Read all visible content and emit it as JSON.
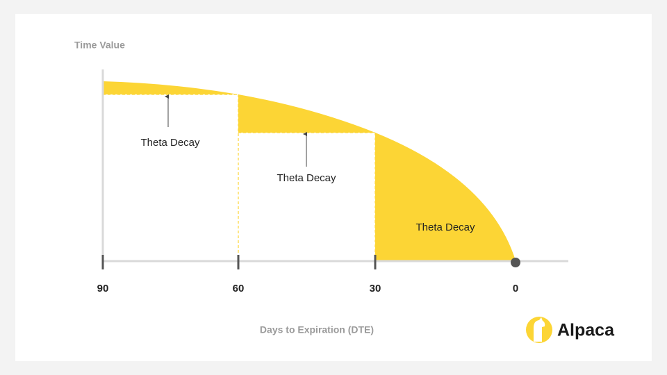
{
  "y_axis": {
    "label": "Time Value"
  },
  "x_axis": {
    "label": "Days to Expiration (DTE)",
    "ticks": [
      "90",
      "60",
      "30",
      "0"
    ]
  },
  "regions": [
    {
      "label": "Theta Decay"
    },
    {
      "label": "Theta Decay"
    },
    {
      "label": "Theta Decay"
    }
  ],
  "logo": {
    "text": "Alpaca"
  }
}
